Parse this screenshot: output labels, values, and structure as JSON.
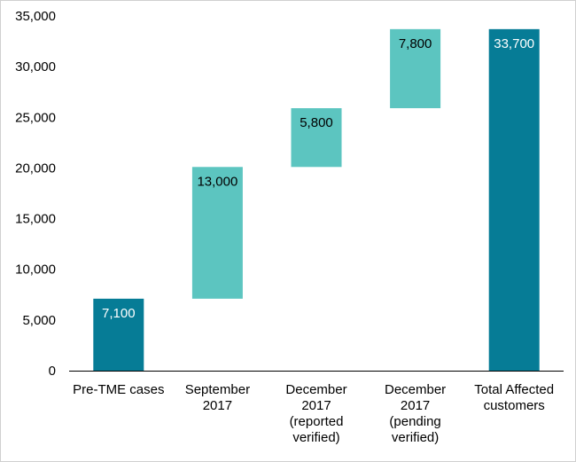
{
  "chart_data": {
    "type": "bar",
    "subtype": "waterfall",
    "title": "",
    "xlabel": "",
    "ylabel": "",
    "ylim": [
      0,
      35000
    ],
    "yticks": [
      0,
      5000,
      10000,
      15000,
      20000,
      25000,
      30000,
      35000
    ],
    "ytick_labels": [
      "0",
      "5,000",
      "10,000",
      "15,000",
      "20,000",
      "25,000",
      "30,000",
      "35,000"
    ],
    "grid": false,
    "legend": "none",
    "categories": [
      [
        "Pre-TME cases"
      ],
      [
        "September",
        "2017"
      ],
      [
        "December",
        "2017",
        "(reported",
        "verified)"
      ],
      [
        "December",
        "2017",
        "(pending",
        "verified)"
      ],
      [
        "Total Affected",
        "customers"
      ]
    ],
    "bars": [
      {
        "base": 0,
        "value": 7100,
        "label": "7,100",
        "kind": "total"
      },
      {
        "base": 7100,
        "value": 13000,
        "label": "13,000",
        "kind": "delta"
      },
      {
        "base": 20100,
        "value": 5800,
        "label": "5,800",
        "kind": "delta"
      },
      {
        "base": 25900,
        "value": 7800,
        "label": "7,800",
        "kind": "delta"
      },
      {
        "base": 0,
        "value": 33700,
        "label": "33,700",
        "kind": "total"
      }
    ],
    "colors": {
      "total": "#067c96",
      "delta": "#5cc5c0",
      "total_label": "#ffffff",
      "delta_label": "#000000",
      "axis": "#000000"
    }
  }
}
